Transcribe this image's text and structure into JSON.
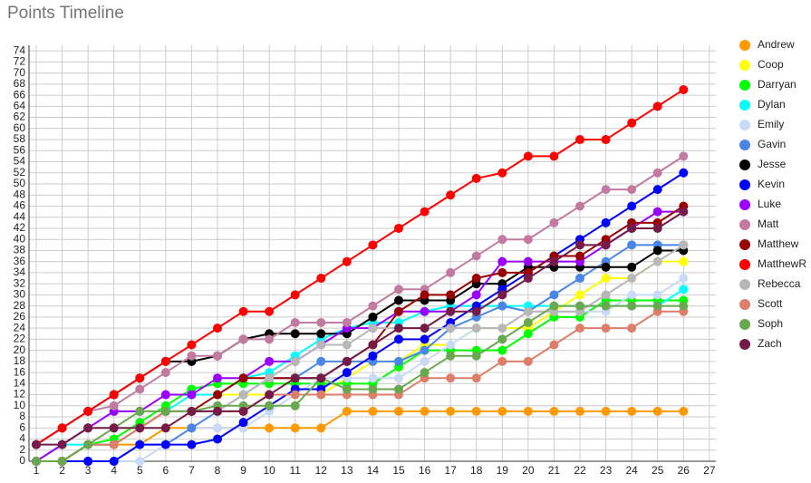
{
  "chart_data": {
    "type": "line",
    "title": "Points Timeline",
    "x": [
      1,
      2,
      3,
      4,
      5,
      6,
      7,
      8,
      9,
      10,
      11,
      12,
      13,
      14,
      15,
      16,
      17,
      18,
      19,
      20,
      21,
      22,
      23,
      24,
      25,
      26
    ],
    "xlim": [
      0.72,
      27.25
    ],
    "xticks": [
      1,
      2,
      3,
      4,
      5,
      6,
      7,
      8,
      9,
      10,
      11,
      12,
      13,
      14,
      15,
      16,
      17,
      18,
      19,
      20,
      21,
      22,
      23,
      24,
      25,
      26,
      27
    ],
    "ylim": [
      0,
      75
    ],
    "yticks": [
      0,
      2,
      4,
      6,
      8,
      10,
      12,
      14,
      16,
      18,
      20,
      22,
      24,
      26,
      28,
      30,
      32,
      34,
      36,
      38,
      40,
      42,
      44,
      46,
      48,
      50,
      52,
      54,
      56,
      58,
      60,
      62,
      64,
      66,
      68,
      70,
      72,
      74
    ],
    "grid": true,
    "legend": "right",
    "series": [
      {
        "name": "Andrew",
        "color": "#ff9900",
        "values": [
          0,
          0,
          3,
          3,
          3,
          6,
          6,
          6,
          6,
          6,
          6,
          6,
          9,
          9,
          9,
          9,
          9,
          9,
          9,
          9,
          9,
          9,
          9,
          9,
          9,
          9
        ]
      },
      {
        "name": "Coop",
        "color": "#ffff00",
        "values": [
          0,
          0,
          3,
          3,
          6,
          9,
          12,
          12,
          12,
          12,
          12,
          12,
          15,
          18,
          18,
          21,
          21,
          24,
          24,
          24,
          27,
          30,
          33,
          33,
          36,
          36
        ]
      },
      {
        "name": "Darryan",
        "color": "#00ff00",
        "values": [
          0,
          0,
          3,
          4,
          7,
          10,
          13,
          14,
          14,
          14,
          14,
          14,
          14,
          14,
          17,
          20,
          20,
          20,
          20,
          23,
          26,
          26,
          29,
          29,
          29,
          29
        ]
      },
      {
        "name": "Dylan",
        "color": "#00ffff",
        "values": [
          0,
          3,
          3,
          3,
          6,
          9,
          12,
          12,
          15,
          16,
          19,
          22,
          24,
          25,
          25,
          27,
          28,
          28,
          28,
          28,
          28,
          28,
          28,
          28,
          28,
          31
        ]
      },
      {
        "name": "Emily",
        "color": "#c9daf8",
        "values": [
          0,
          0,
          0,
          0,
          0,
          3,
          6,
          6,
          6,
          9,
          12,
          15,
          15,
          15,
          15,
          18,
          21,
          24,
          24,
          27,
          27,
          27,
          27,
          30,
          30,
          33
        ]
      },
      {
        "name": "Gavin",
        "color": "#4a86e8",
        "values": [
          0,
          0,
          0,
          0,
          3,
          3,
          6,
          9,
          12,
          15,
          15,
          18,
          18,
          18,
          18,
          20,
          24,
          26,
          28,
          27,
          30,
          33,
          36,
          39,
          39,
          39
        ]
      },
      {
        "name": "Jesse",
        "color": "#000000",
        "values": [
          3,
          6,
          9,
          12,
          15,
          18,
          18,
          19,
          22,
          23,
          23,
          23,
          23,
          26,
          29,
          29,
          29,
          32,
          32,
          35,
          35,
          35,
          35,
          35,
          38,
          38
        ]
      },
      {
        "name": "Kevin",
        "color": "#0000ff",
        "values": [
          0,
          0,
          0,
          0,
          3,
          3,
          3,
          4,
          7,
          10,
          13,
          13,
          16,
          19,
          22,
          22,
          25,
          28,
          31,
          34,
          37,
          40,
          43,
          46,
          49,
          52
        ]
      },
      {
        "name": "Luke",
        "color": "#9900ff",
        "values": [
          0,
          3,
          6,
          9,
          9,
          12,
          12,
          15,
          15,
          18,
          18,
          21,
          24,
          24,
          27,
          27,
          27,
          30,
          36,
          36,
          36,
          36,
          39,
          42,
          45,
          45
        ]
      },
      {
        "name": "Matt",
        "color": "#c27ba0",
        "values": [
          3,
          6,
          9,
          10,
          13,
          16,
          19,
          19,
          22,
          22,
          25,
          25,
          25,
          28,
          31,
          31,
          34,
          37,
          40,
          40,
          43,
          46,
          49,
          49,
          52,
          55
        ]
      },
      {
        "name": "Matthew",
        "color": "#990000",
        "values": [
          0,
          0,
          3,
          3,
          6,
          9,
          9,
          12,
          15,
          15,
          15,
          15,
          18,
          21,
          27,
          30,
          30,
          33,
          34,
          34,
          37,
          37,
          40,
          43,
          43,
          46
        ]
      },
      {
        "name": "MatthewR",
        "color": "#ff0000",
        "values": [
          3,
          6,
          9,
          12,
          15,
          18,
          21,
          24,
          27,
          27,
          30,
          33,
          36,
          39,
          42,
          45,
          48,
          51,
          52,
          55,
          55,
          58,
          58,
          61,
          64,
          67
        ]
      },
      {
        "name": "Rebecca",
        "color": "#b7b7b7",
        "values": [
          0,
          0,
          3,
          3,
          6,
          9,
          9,
          9,
          12,
          15,
          18,
          21,
          21,
          24,
          24,
          24,
          24,
          24,
          24,
          27,
          27,
          27,
          30,
          33,
          36,
          39
        ]
      },
      {
        "name": "Scott",
        "color": "#dd7e6b",
        "values": [
          0,
          0,
          3,
          3,
          6,
          9,
          9,
          9,
          9,
          12,
          12,
          12,
          12,
          12,
          12,
          15,
          15,
          15,
          18,
          18,
          21,
          24,
          24,
          24,
          27,
          27
        ]
      },
      {
        "name": "Soph",
        "color": "#6aa84f",
        "values": [
          0,
          0,
          3,
          6,
          9,
          9,
          9,
          10,
          10,
          10,
          10,
          15,
          13,
          13,
          13,
          16,
          19,
          19,
          22,
          25,
          28,
          28,
          28,
          28,
          28,
          28
        ]
      },
      {
        "name": "Zach",
        "color": "#741b47",
        "values": [
          3,
          3,
          6,
          6,
          6,
          6,
          9,
          9,
          9,
          12,
          15,
          15,
          18,
          21,
          24,
          24,
          27,
          27,
          30,
          33,
          36,
          39,
          39,
          42,
          42,
          45
        ]
      }
    ]
  }
}
